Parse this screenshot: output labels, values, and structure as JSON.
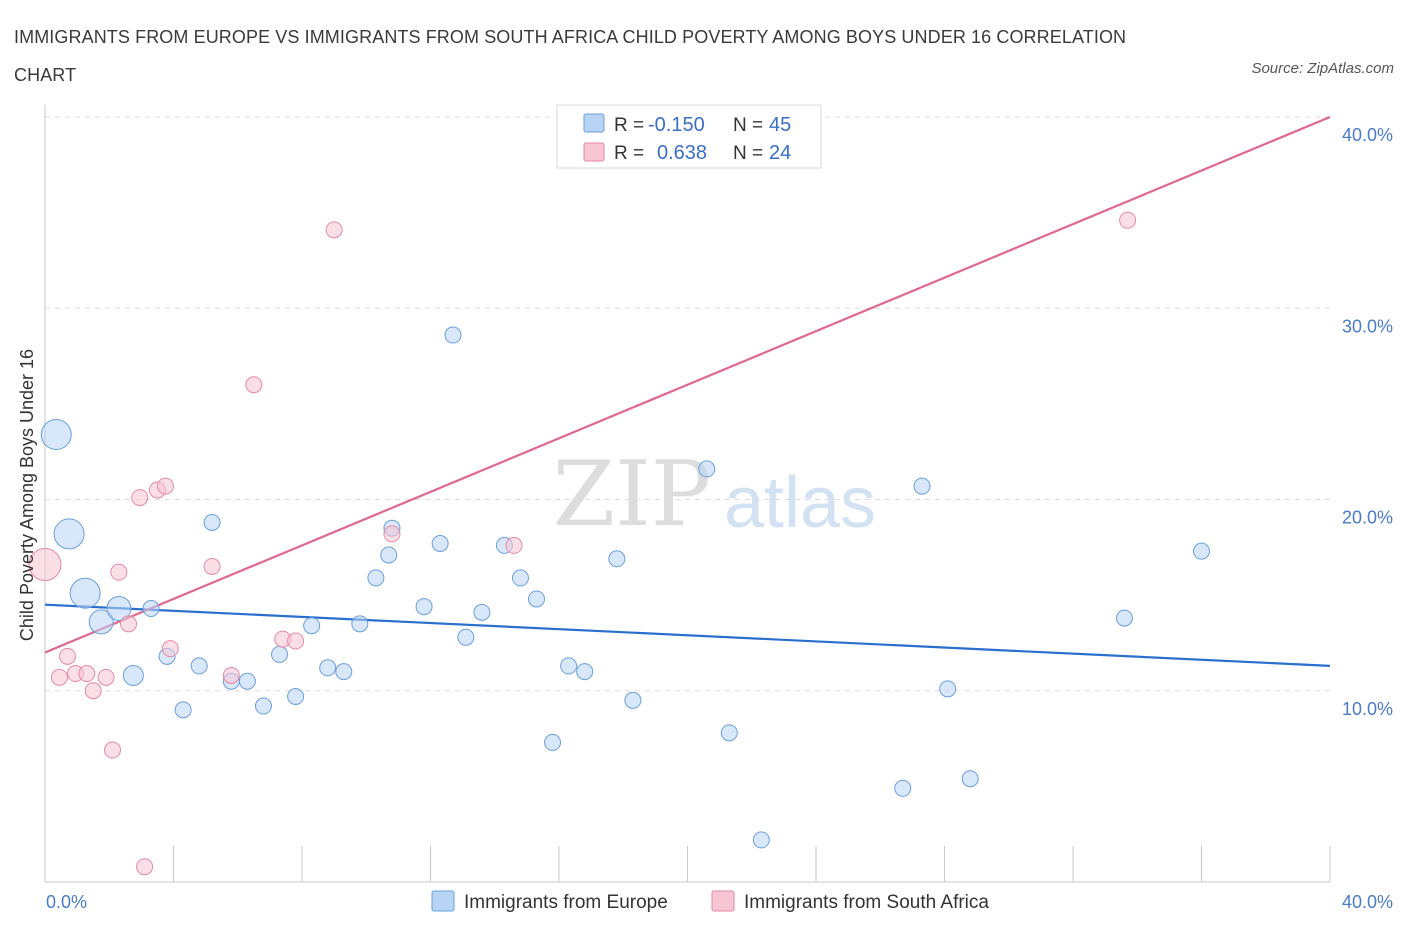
{
  "title": "IMMIGRANTS FROM EUROPE VS IMMIGRANTS FROM SOUTH AFRICA CHILD POVERTY AMONG BOYS UNDER 16 CORRELATION CHART",
  "source": "Source: ZipAtlas.com",
  "watermark": {
    "zip": "ZIP",
    "atlas": "atlas"
  },
  "legend": {
    "europe": {
      "r_label": "R =",
      "r_value": "-0.150",
      "n_label": "N =",
      "n_value": "45"
    },
    "south_africa": {
      "r_label": "R =",
      "r_value": "0.638",
      "n_label": "N =",
      "n_value": "24"
    }
  },
  "colors": {
    "europe_fill": "#b8d4f5",
    "europe_stroke": "#6a9fdc",
    "europe_line": "#2b6fcc",
    "sa_fill": "#f7c5d4",
    "sa_stroke": "#e58aa7",
    "sa_line": "#e0678f",
    "grid": "#dcdcdc",
    "tick_text": "#4a7cc7"
  },
  "chart_data": {
    "type": "scatter",
    "title": "IMMIGRANTS FROM EUROPE VS IMMIGRANTS FROM SOUTH AFRICA CHILD POVERTY AMONG BOYS UNDER 16 CORRELATION CHART",
    "xlabel": "",
    "ylabel": "Child Poverty Among Boys Under 16",
    "xlim": [
      0,
      40
    ],
    "ylim": [
      0,
      40
    ],
    "x_tick_labels": [
      "0.0%",
      "40.0%"
    ],
    "y_ticks": [
      10,
      20,
      30,
      40
    ],
    "y_tick_labels": [
      "10.0%",
      "20.0%",
      "30.0%",
      "40.0%"
    ],
    "series": [
      {
        "name": "Immigrants from Europe",
        "r": -0.15,
        "n": 45,
        "trend": {
          "x": [
            0,
            40
          ],
          "y": [
            14.5,
            11.3
          ]
        },
        "points": [
          {
            "x": 0.35,
            "y": 23.4,
            "s": 3
          },
          {
            "x": 0.75,
            "y": 18.2,
            "s": 3
          },
          {
            "x": 1.25,
            "y": 15.1,
            "s": 3
          },
          {
            "x": 1.75,
            "y": 13.6,
            "s": 2.4
          },
          {
            "x": 2.3,
            "y": 14.3,
            "s": 2.4
          },
          {
            "x": 2.75,
            "y": 10.8,
            "s": 2
          },
          {
            "x": 3.3,
            "y": 14.3,
            "s": 1.6
          },
          {
            "x": 3.8,
            "y": 11.8,
            "s": 1.6
          },
          {
            "x": 4.3,
            "y": 9.0,
            "s": 1.6
          },
          {
            "x": 4.8,
            "y": 11.3,
            "s": 1.6
          },
          {
            "x": 5.2,
            "y": 18.8,
            "s": 1.6
          },
          {
            "x": 5.8,
            "y": 10.5,
            "s": 1.6
          },
          {
            "x": 6.3,
            "y": 10.5,
            "s": 1.6
          },
          {
            "x": 6.8,
            "y": 9.2,
            "s": 1.6
          },
          {
            "x": 7.3,
            "y": 11.9,
            "s": 1.6
          },
          {
            "x": 7.8,
            "y": 9.7,
            "s": 1.6
          },
          {
            "x": 8.3,
            "y": 13.4,
            "s": 1.6
          },
          {
            "x": 8.8,
            "y": 11.2,
            "s": 1.6
          },
          {
            "x": 9.3,
            "y": 11.0,
            "s": 1.6
          },
          {
            "x": 9.8,
            "y": 13.5,
            "s": 1.6
          },
          {
            "x": 10.3,
            "y": 15.9,
            "s": 1.6
          },
          {
            "x": 10.8,
            "y": 18.5,
            "s": 1.6
          },
          {
            "x": 10.7,
            "y": 17.1,
            "s": 1.6
          },
          {
            "x": 11.8,
            "y": 14.4,
            "s": 1.6
          },
          {
            "x": 12.3,
            "y": 17.7,
            "s": 1.6
          },
          {
            "x": 12.7,
            "y": 28.6,
            "s": 1.6
          },
          {
            "x": 13.1,
            "y": 12.8,
            "s": 1.6
          },
          {
            "x": 13.6,
            "y": 14.1,
            "s": 1.6
          },
          {
            "x": 14.3,
            "y": 17.6,
            "s": 1.6
          },
          {
            "x": 14.8,
            "y": 15.9,
            "s": 1.6
          },
          {
            "x": 15.3,
            "y": 14.8,
            "s": 1.6
          },
          {
            "x": 15.8,
            "y": 7.3,
            "s": 1.6
          },
          {
            "x": 16.3,
            "y": 11.3,
            "s": 1.6
          },
          {
            "x": 16.8,
            "y": 11.0,
            "s": 1.6
          },
          {
            "x": 17.8,
            "y": 16.9,
            "s": 1.6
          },
          {
            "x": 18.3,
            "y": 9.5,
            "s": 1.6
          },
          {
            "x": 20.6,
            "y": 21.6,
            "s": 1.6
          },
          {
            "x": 21.3,
            "y": 7.8,
            "s": 1.6
          },
          {
            "x": 22.3,
            "y": 2.2,
            "s": 1.6
          },
          {
            "x": 26.7,
            "y": 4.9,
            "s": 1.6
          },
          {
            "x": 27.3,
            "y": 20.7,
            "s": 1.6
          },
          {
            "x": 28.1,
            "y": 10.1,
            "s": 1.6
          },
          {
            "x": 28.8,
            "y": 5.4,
            "s": 1.6
          },
          {
            "x": 33.6,
            "y": 13.8,
            "s": 1.6
          },
          {
            "x": 36.0,
            "y": 17.3,
            "s": 1.6
          }
        ]
      },
      {
        "name": "Immigrants from South Africa",
        "r": 0.638,
        "n": 24,
        "trend": {
          "x": [
            0,
            40
          ],
          "y": [
            12.0,
            40.0
          ]
        },
        "points": [
          {
            "x": 0.0,
            "y": 16.6,
            "s": 3.2
          },
          {
            "x": 0.45,
            "y": 10.7,
            "s": 1.6
          },
          {
            "x": 0.7,
            "y": 11.8,
            "s": 1.6
          },
          {
            "x": 0.95,
            "y": 10.9,
            "s": 1.6
          },
          {
            "x": 1.3,
            "y": 10.9,
            "s": 1.6
          },
          {
            "x": 1.5,
            "y": 10.0,
            "s": 1.6
          },
          {
            "x": 1.9,
            "y": 10.7,
            "s": 1.6
          },
          {
            "x": 2.1,
            "y": 6.9,
            "s": 1.6
          },
          {
            "x": 2.3,
            "y": 16.2,
            "s": 1.6
          },
          {
            "x": 2.6,
            "y": 13.5,
            "s": 1.6
          },
          {
            "x": 2.95,
            "y": 20.1,
            "s": 1.6
          },
          {
            "x": 3.1,
            "y": 0.8,
            "s": 1.6
          },
          {
            "x": 3.5,
            "y": 20.5,
            "s": 1.6
          },
          {
            "x": 3.75,
            "y": 20.7,
            "s": 1.6
          },
          {
            "x": 3.9,
            "y": 12.2,
            "s": 1.6
          },
          {
            "x": 5.2,
            "y": 16.5,
            "s": 1.6
          },
          {
            "x": 5.8,
            "y": 10.8,
            "s": 1.6
          },
          {
            "x": 6.5,
            "y": 26.0,
            "s": 1.6
          },
          {
            "x": 7.4,
            "y": 12.7,
            "s": 1.6
          },
          {
            "x": 7.8,
            "y": 12.6,
            "s": 1.6
          },
          {
            "x": 9.0,
            "y": 34.1,
            "s": 1.6
          },
          {
            "x": 10.8,
            "y": 18.2,
            "s": 1.6
          },
          {
            "x": 14.6,
            "y": 17.6,
            "s": 1.6
          },
          {
            "x": 33.7,
            "y": 34.6,
            "s": 1.6
          }
        ]
      }
    ]
  }
}
